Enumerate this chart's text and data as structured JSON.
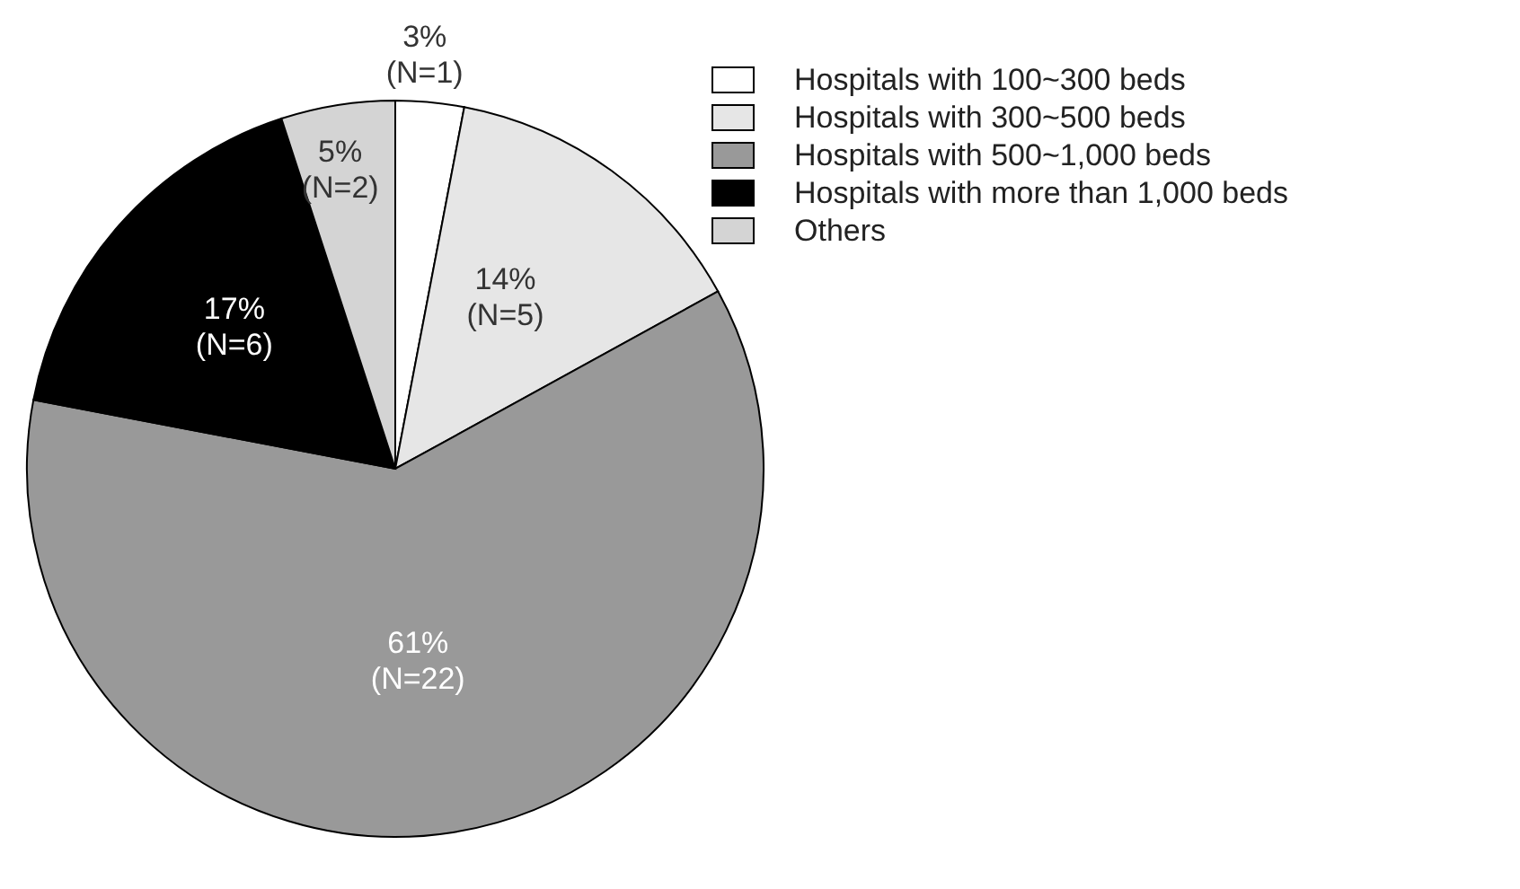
{
  "chart_data": {
    "type": "pie",
    "categories": [
      "Hospitals with 100~300 beds",
      "Hospitals with 300~500 beds",
      "Hospitals with 500~1,000 beds",
      "Hospitals with more than 1,000 beds",
      "Others"
    ],
    "values": [
      3,
      14,
      61,
      17,
      5
    ],
    "value_labels": [
      "3%\n(N=1)",
      "14%\n(N=5)",
      "61%\n(N=22)",
      "17%\n(N=6)",
      "5%\n(N=2)"
    ],
    "colors": [
      "#ffffff",
      "#e6e6e6",
      "#999999",
      "#000000",
      "#d4d4d4"
    ],
    "legend": "top right"
  }
}
